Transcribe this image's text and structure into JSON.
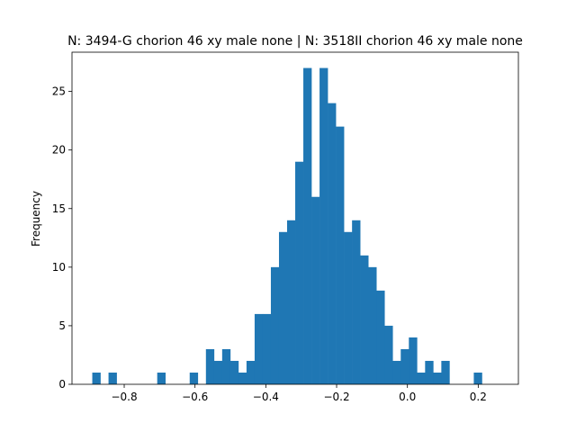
{
  "chart_data": {
    "type": "bar",
    "title": "N: 3494-G chorion 46 xy male none | N: 3518II chorion 46 xy male none",
    "xlabel": "",
    "ylabel": "Frequency",
    "xlim": [
      -0.9475,
      0.3135
    ],
    "ylim": [
      0,
      28.35
    ],
    "grid": false,
    "legend": "none",
    "color": "#1f77b4",
    "xticks": [
      -0.8,
      -0.6,
      -0.4,
      -0.2,
      0.0,
      0.2
    ],
    "xtick_labels": [
      "−0.8",
      "−0.6",
      "−0.4",
      "−0.2",
      "0.0",
      "0.2"
    ],
    "yticks": [
      0,
      5,
      10,
      15,
      20,
      25
    ],
    "ytick_labels": [
      "0",
      "5",
      "10",
      "15",
      "20",
      "25"
    ],
    "bin_width": 0.02293,
    "bin_edges_start": -0.8902,
    "values": [
      1,
      0,
      1,
      0,
      0,
      0,
      0,
      0,
      1,
      0,
      0,
      0,
      1,
      0,
      3,
      2,
      3,
      2,
      1,
      2,
      6,
      6,
      10,
      13,
      14,
      19,
      27,
      16,
      27,
      24,
      22,
      13,
      14,
      11,
      10,
      8,
      5,
      2,
      3,
      4,
      1,
      2,
      1,
      2,
      0,
      0,
      0,
      1
    ]
  }
}
